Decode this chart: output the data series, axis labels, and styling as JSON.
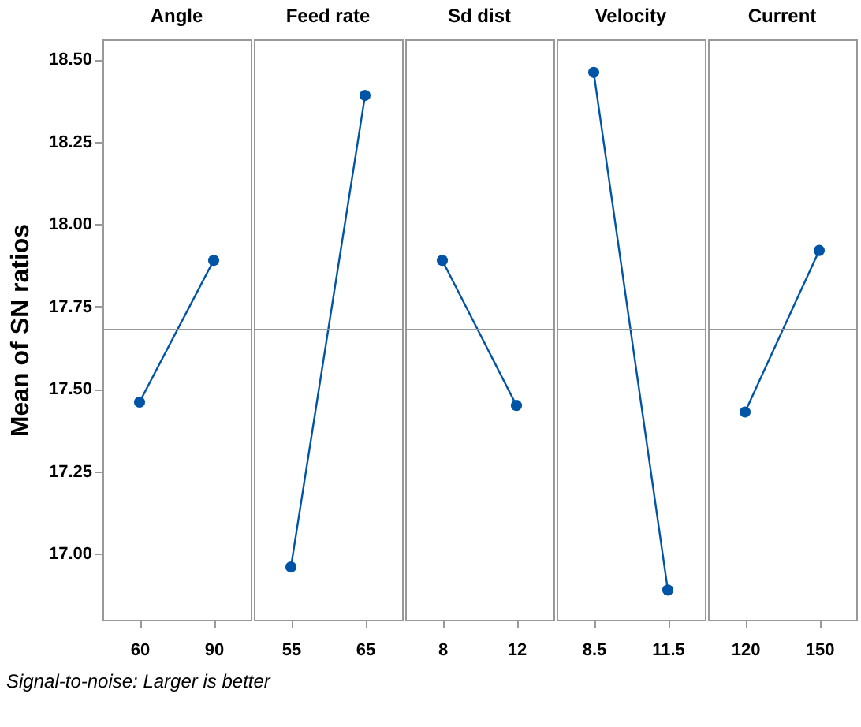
{
  "chart_data": [
    {
      "type": "line",
      "title": "Angle",
      "ylabel": "Mean of SN ratios",
      "categories": [
        "60",
        "90"
      ],
      "values": [
        17.46,
        17.89
      ],
      "color": "#0054a6",
      "marker": "circle",
      "ylim": [
        16.8,
        18.56
      ],
      "yticks": [
        {
          "value": 17,
          "label": "17.00"
        },
        17.25,
        {
          "value": 17.5,
          "label": "17.50"
        },
        17.75,
        {
          "value": 18,
          "label": "18.00"
        },
        18.25,
        {
          "value": 18.5,
          "label": "18.50"
        }
      ],
      "ref_lines": [
        {
          "axis": "y",
          "value": 17.68,
          "color": "#999999"
        }
      ],
      "grid": false,
      "annotations": [
        "Signal-to-noise: Larger is better"
      ]
    },
    {
      "type": "line",
      "title": "Feed rate",
      "categories": [
        "55",
        "65"
      ],
      "values": [
        16.96,
        18.39
      ],
      "color": "#0054a6",
      "marker": "circle",
      "ylim": [
        16.8,
        18.56
      ],
      "tick_labels": "x",
      "ref_lines": [
        {
          "axis": "y",
          "value": 17.68,
          "color": "#999999"
        }
      ],
      "grid": false
    },
    {
      "type": "line",
      "title": "Sd dist",
      "categories": [
        "8",
        "12"
      ],
      "values": [
        17.89,
        17.45
      ],
      "color": "#0054a6",
      "marker": "circle",
      "ylim": [
        16.8,
        18.56
      ],
      "tick_labels": "x",
      "ref_lines": [
        {
          "axis": "y",
          "value": 17.68,
          "color": "#999999"
        }
      ],
      "grid": false
    },
    {
      "type": "line",
      "title": "Velocity",
      "categories": [
        "8.5",
        "11.5"
      ],
      "values": [
        18.46,
        16.89
      ],
      "color": "#0054a6",
      "marker": "circle",
      "ylim": [
        16.8,
        18.56
      ],
      "tick_labels": "x",
      "ref_lines": [
        {
          "axis": "y",
          "value": 17.68,
          "color": "#999999"
        }
      ],
      "grid": false
    },
    {
      "type": "line",
      "title": "Current",
      "categories": [
        "120",
        "150"
      ],
      "values": [
        17.43,
        17.92
      ],
      "color": "#0054a6",
      "marker": "circle",
      "ylim": [
        16.8,
        18.56
      ],
      "tick_labels": "x",
      "ref_lines": [
        {
          "axis": "y",
          "value": 17.68,
          "color": "#999999"
        }
      ],
      "grid": false
    }
  ]
}
